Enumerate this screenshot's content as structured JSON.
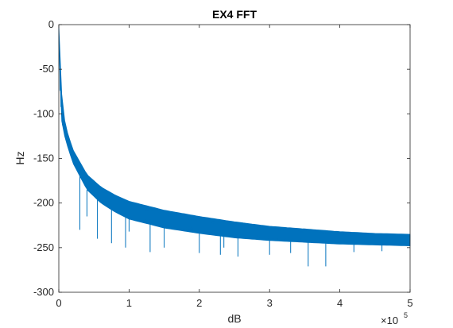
{
  "chart_data": {
    "type": "line",
    "title": "EX4 FFT",
    "xlabel": "dB",
    "ylabel": "Hz",
    "xlim": [
      0,
      500000
    ],
    "ylim": [
      -300,
      0
    ],
    "x_scale_factor_label": "×10",
    "x_scale_factor_exponent": "5",
    "x_ticks": [
      0,
      100000,
      200000,
      300000,
      400000,
      500000
    ],
    "x_tick_labels": [
      "0",
      "1",
      "2",
      "3",
      "4",
      "5"
    ],
    "y_ticks": [
      0,
      -50,
      -100,
      -150,
      -200,
      -250,
      -300
    ],
    "y_tick_labels": [
      "0",
      "-50",
      "-100",
      "-150",
      "-200",
      "-250",
      "-300"
    ],
    "grid": false,
    "series_color": "#0072BD",
    "series": [
      {
        "envelope_upper": {
          "x": [
            0,
            2000,
            5000,
            10000,
            20000,
            40000,
            60000,
            80000,
            100000,
            150000,
            200000,
            250000,
            300000,
            350000,
            400000,
            450000,
            500000
          ],
          "y": [
            -2,
            -42,
            -92,
            -115,
            -140,
            -168,
            -182,
            -191,
            -198,
            -208,
            -215,
            -221,
            -226,
            -229,
            -232,
            -234,
            -235
          ]
        },
        "envelope_lower": {
          "x": [
            0,
            2000,
            5000,
            10000,
            20000,
            40000,
            60000,
            80000,
            100000,
            150000,
            200000,
            250000,
            300000,
            350000,
            400000,
            450000,
            500000
          ],
          "y": [
            -20,
            -90,
            -115,
            -130,
            -155,
            -185,
            -200,
            -210,
            -218,
            -228,
            -234,
            -239,
            -242,
            -244,
            -246,
            -247,
            -248
          ]
        },
        "spikes": [
          {
            "x": 30000,
            "y": -230
          },
          {
            "x": 40000,
            "y": -215
          },
          {
            "x": 55000,
            "y": -240
          },
          {
            "x": 75000,
            "y": -245
          },
          {
            "x": 95000,
            "y": -250
          },
          {
            "x": 100000,
            "y": -232
          },
          {
            "x": 130000,
            "y": -255
          },
          {
            "x": 150000,
            "y": -250
          },
          {
            "x": 200000,
            "y": -256
          },
          {
            "x": 230000,
            "y": -258
          },
          {
            "x": 235000,
            "y": -250
          },
          {
            "x": 255000,
            "y": -260
          },
          {
            "x": 300000,
            "y": -258
          },
          {
            "x": 330000,
            "y": -256
          },
          {
            "x": 355000,
            "y": -271
          },
          {
            "x": 380000,
            "y": -271
          },
          {
            "x": 420000,
            "y": -255
          },
          {
            "x": 460000,
            "y": -254
          }
        ]
      }
    ]
  }
}
